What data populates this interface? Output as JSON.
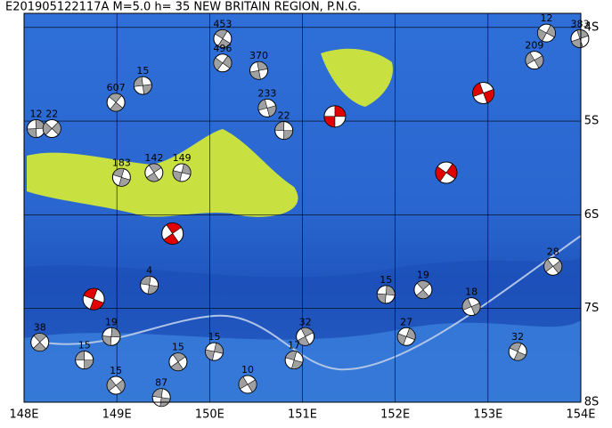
{
  "map": {
    "title": "E201905122117A  M=5.0  h= 35  NEW BRITAIN REGION, P.N.G.",
    "xlim": [
      148,
      154
    ],
    "ylim": [
      -8,
      -3.85
    ],
    "xticks": [
      {
        "value": 148,
        "label": "148E"
      },
      {
        "value": 149,
        "label": "149E"
      },
      {
        "value": 150,
        "label": "150E"
      },
      {
        "value": 151,
        "label": "151E"
      },
      {
        "value": 152,
        "label": "152E"
      },
      {
        "value": 153,
        "label": "153E"
      },
      {
        "value": 154,
        "label": "154E"
      }
    ],
    "yticks": [
      {
        "value": -4,
        "label": "4S"
      },
      {
        "value": -5,
        "label": "5S"
      },
      {
        "value": -6,
        "label": "6S"
      },
      {
        "value": -7,
        "label": "7S"
      },
      {
        "value": -8,
        "label": "8S"
      }
    ],
    "events": [
      {
        "lon": 148.65,
        "lat": -7.55,
        "depth": 15
      },
      {
        "lon": 148.17,
        "lat": -7.36,
        "depth": 38
      },
      {
        "lon": 148.94,
        "lat": -7.3,
        "depth": 19
      },
      {
        "lon": 148.99,
        "lat": -7.82,
        "depth": 15
      },
      {
        "lon": 149.48,
        "lat": -7.95,
        "depth": 87
      },
      {
        "lon": 149.66,
        "lat": -7.57,
        "depth": 15
      },
      {
        "lon": 150.05,
        "lat": -7.46,
        "depth": 15
      },
      {
        "lon": 150.41,
        "lat": -7.81,
        "depth": 10
      },
      {
        "lon": 150.91,
        "lat": -7.55,
        "depth": 17
      },
      {
        "lon": 151.03,
        "lat": -7.3,
        "depth": 32
      },
      {
        "lon": 152.12,
        "lat": -7.3,
        "depth": 27
      },
      {
        "lon": 152.82,
        "lat": -6.98,
        "depth": 18
      },
      {
        "lon": 153.32,
        "lat": -7.46,
        "depth": 32
      },
      {
        "lon": 153.99,
        "lat": -4.12,
        "depth": 383
      },
      {
        "lon": 153.63,
        "lat": -4.06,
        "depth": 12
      },
      {
        "lon": 150.62,
        "lat": -4.86,
        "depth": 233
      },
      {
        "lon": 150.14,
        "lat": -4.12,
        "depth": 453
      },
      {
        "lon": 150.53,
        "lat": -4.46,
        "depth": 370
      },
      {
        "lon": 150.14,
        "lat": -4.38,
        "depth": 496
      },
      {
        "lon": 149.28,
        "lat": -4.62,
        "depth": 15
      },
      {
        "lon": 148.99,
        "lat": -4.8,
        "depth": 607
      },
      {
        "lon": 148.13,
        "lat": -5.08,
        "depth": 12
      },
      {
        "lon": 148.3,
        "lat": -5.08,
        "depth": 22
      },
      {
        "lon": 150.8,
        "lat": -5.1,
        "depth": 22
      },
      {
        "lon": 152.3,
        "lat": -6.8,
        "depth": 19
      },
      {
        "lon": 151.9,
        "lat": -6.85,
        "depth": 15
      },
      {
        "lon": 153.7,
        "lat": -6.55,
        "depth": 28
      },
      {
        "lon": 149.35,
        "lat": -6.75,
        "depth": 4
      },
      {
        "lon": 149.4,
        "lat": -5.55,
        "depth": 142
      },
      {
        "lon": 149.7,
        "lat": -5.55,
        "depth": 149
      },
      {
        "lon": 153.5,
        "lat": -4.35,
        "depth": 209
      },
      {
        "lon": 149.05,
        "lat": -5.6,
        "depth": 183
      }
    ],
    "highlighted": [
      {
        "lon": 148.75,
        "lat": -6.9
      },
      {
        "lon": 149.6,
        "lat": -6.2
      },
      {
        "lon": 151.35,
        "lat": -4.95
      },
      {
        "lon": 152.55,
        "lat": -5.55
      },
      {
        "lon": 152.95,
        "lat": -4.7
      }
    ]
  }
}
